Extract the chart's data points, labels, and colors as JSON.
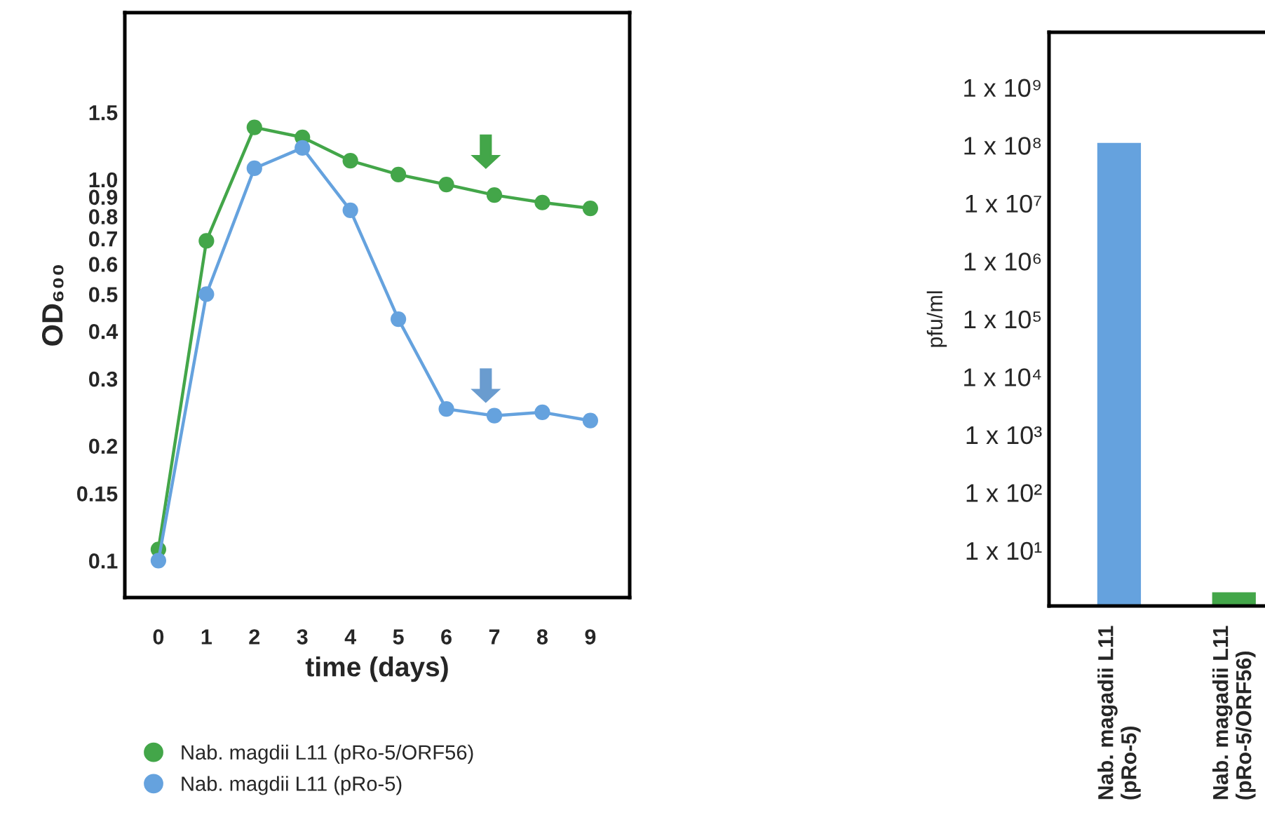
{
  "chart_data": [
    {
      "type": "line",
      "xlabel": "time (days)",
      "ylabel": "OD₆₀₀",
      "x": [
        0,
        1,
        2,
        3,
        4,
        5,
        6,
        7,
        8,
        9
      ],
      "series": [
        {
          "name": "Nab. magdii L11 (pRo-5/ORF56)",
          "color": "#43a649",
          "values": [
            0.107,
            0.69,
            1.37,
            1.29,
            1.12,
            1.03,
            0.97,
            0.91,
            0.87,
            0.84
          ]
        },
        {
          "name": "Nab. magdii L11 (pRo-5)",
          "color": "#65a2de",
          "values": [
            0.1,
            0.5,
            1.07,
            1.21,
            0.83,
            0.43,
            0.25,
            0.24,
            0.245,
            0.233
          ]
        }
      ],
      "xlim": [
        -0.7,
        9.82
      ],
      "xticks": [
        0,
        1,
        2,
        3,
        4,
        5,
        6,
        7,
        8,
        9
      ],
      "ylim": [
        0.08,
        2.74
      ],
      "yticks": [
        0.1,
        0.15,
        0.2,
        0.3,
        0.4,
        0.5,
        0.6,
        0.7,
        0.8,
        0.9,
        {
          "value": 1,
          "label": "1.0"
        },
        1.5
      ],
      "log": true,
      "marker": "circle",
      "legend": "bottom",
      "grid": false
    },
    {
      "type": "bar",
      "ylabel": "pfu/ml",
      "categories": [
        "Nab. magadii L11\n(pRo-5)",
        "Nab. magadii L11\n(pRo-5/ORF56)"
      ],
      "values": [
        110000000,
        1.9
      ],
      "colors": [
        "#65a2de",
        "#43a649"
      ],
      "ylim": [
        1.1,
        9000000000
      ],
      "yticks": [
        {
          "value": 10,
          "label": "1 x 10¹"
        },
        {
          "value": 100,
          "label": "1 x 10²"
        },
        {
          "value": 1000,
          "label": "1 x 10³"
        },
        {
          "value": 10000,
          "label": "1 x 10⁴"
        },
        {
          "value": 100000,
          "label": "1 x 10⁵"
        },
        {
          "value": 1000000,
          "label": "1 x 10⁶"
        },
        {
          "value": 10000000,
          "label": "1 x 10⁷"
        },
        {
          "value": 100000000,
          "label": "1 x 10⁸"
        },
        {
          "value": 1000000000,
          "label": "1 x 10⁹"
        }
      ],
      "log": true,
      "grid": false
    }
  ]
}
